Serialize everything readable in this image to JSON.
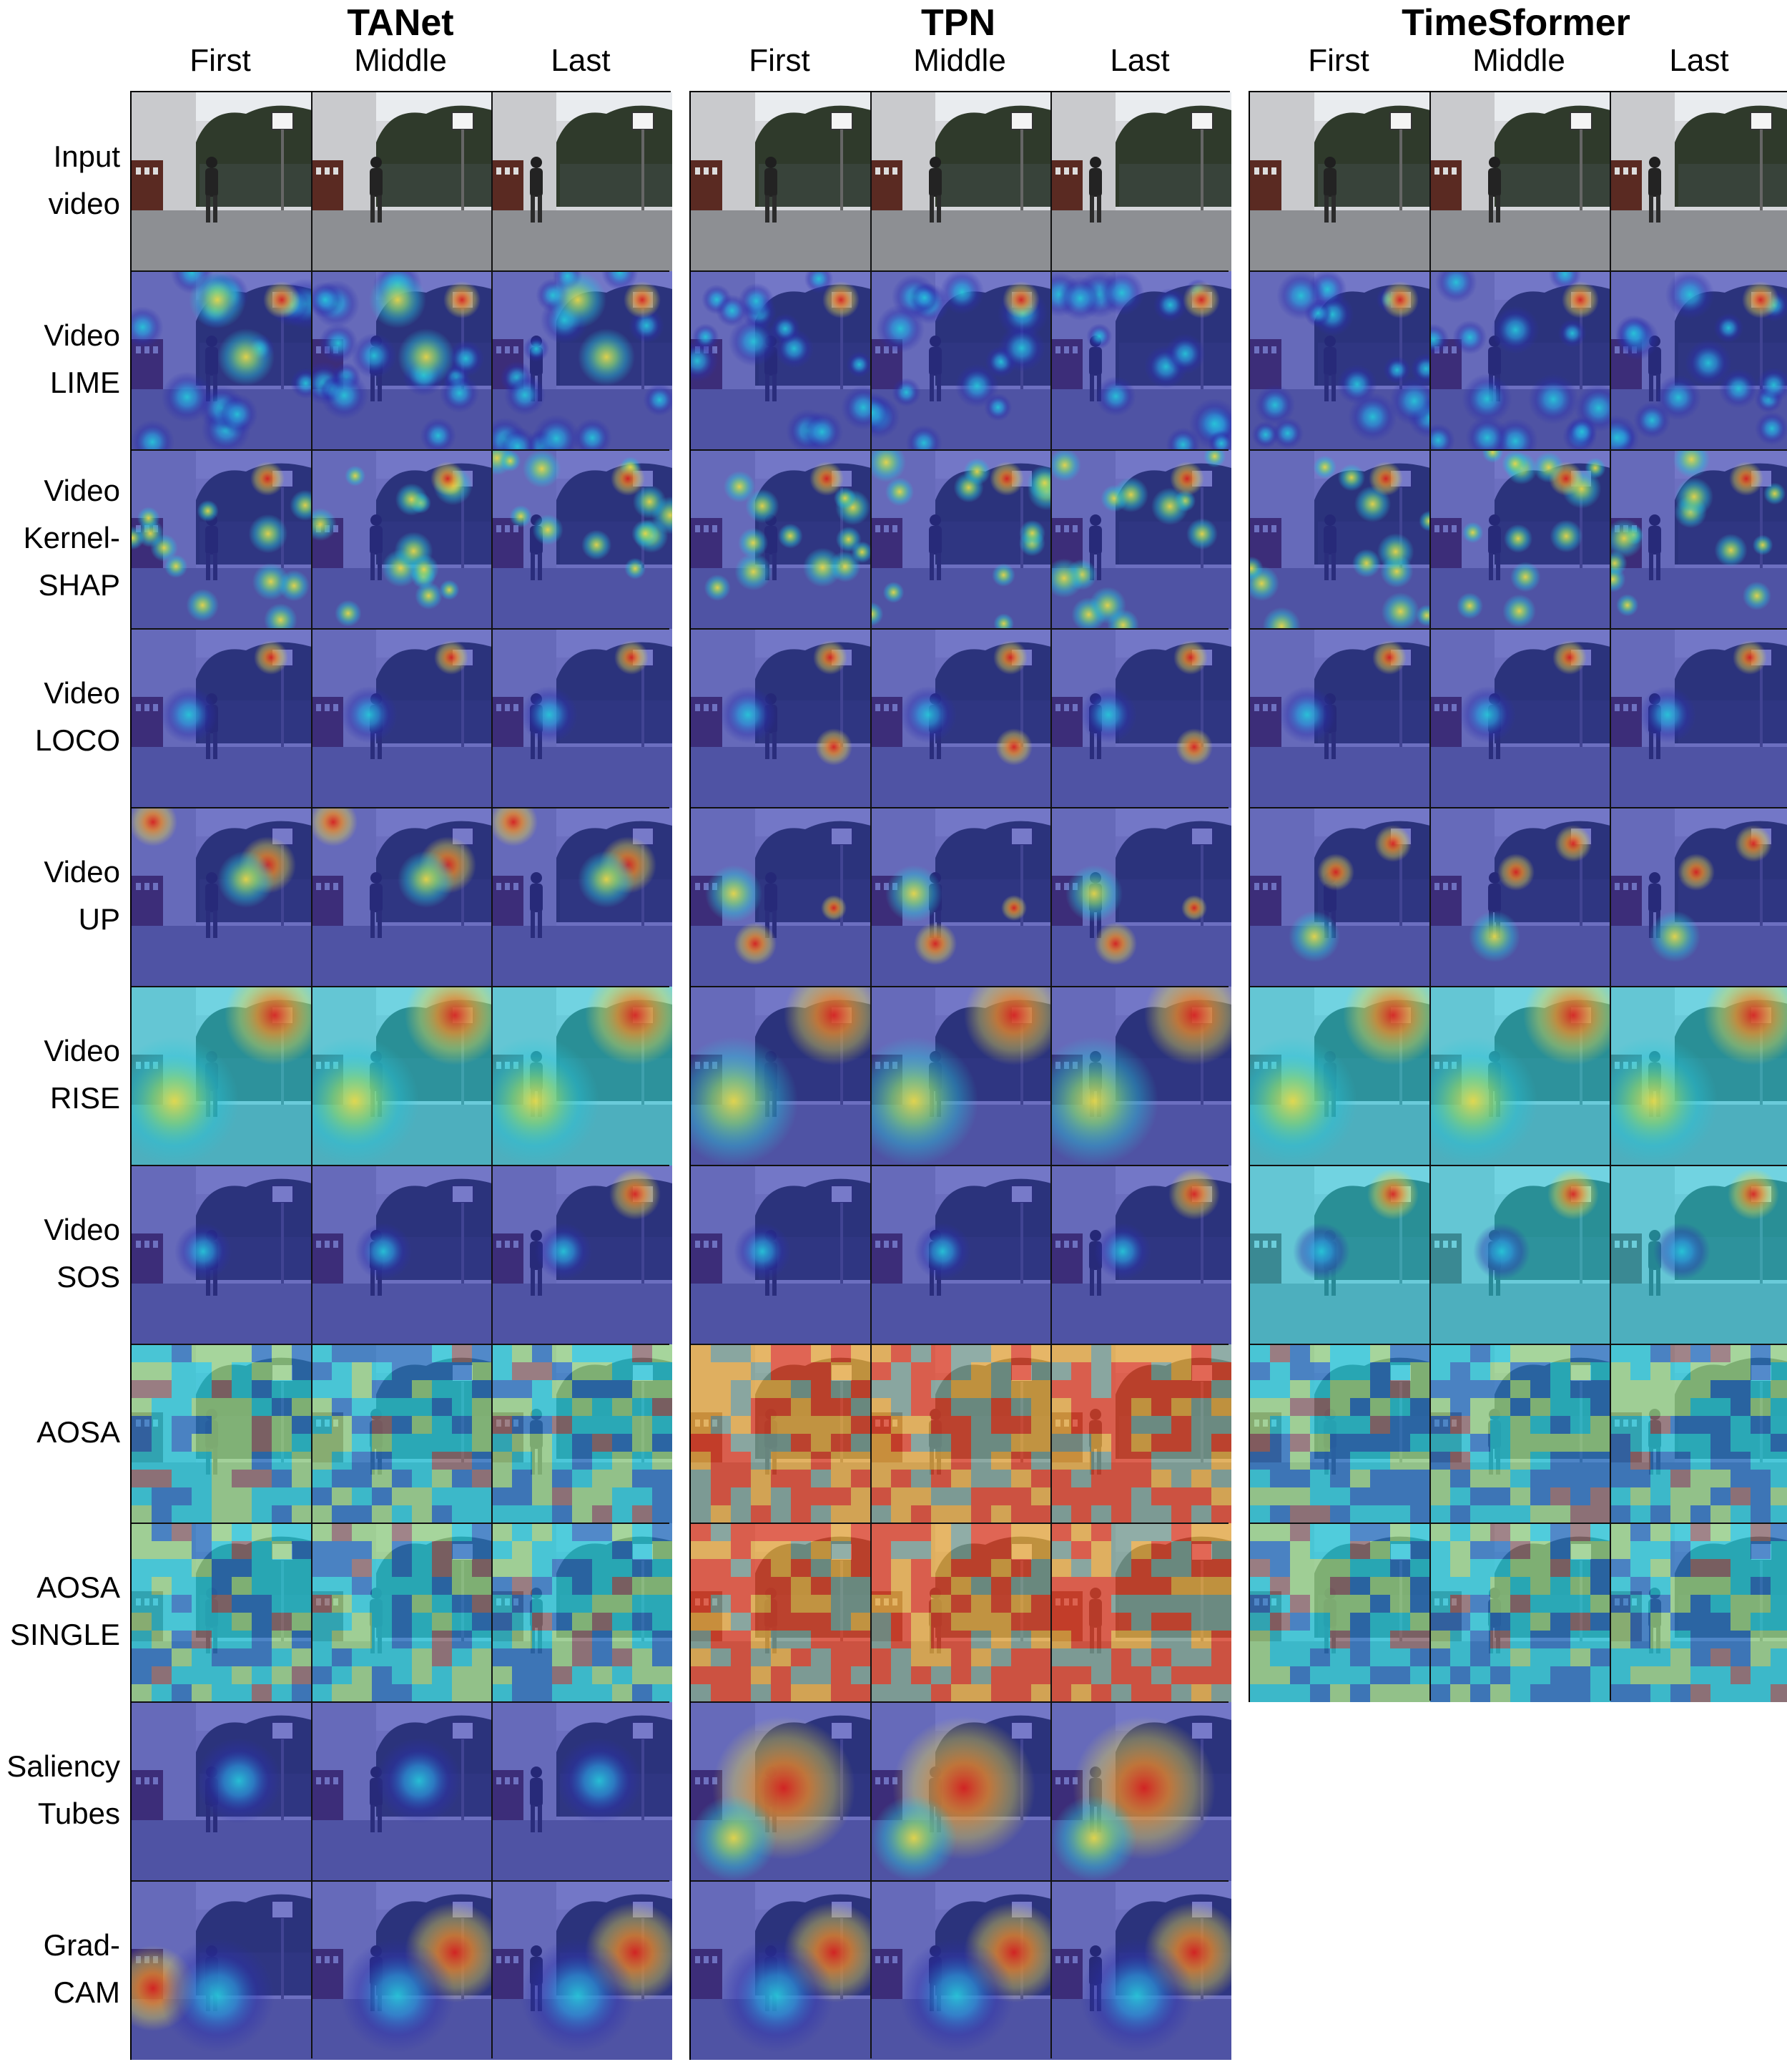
{
  "models": [
    {
      "id": "tanet",
      "title": "TANet",
      "rows": [
        "input_video",
        "video_lime",
        "video_kernel_shap",
        "video_loco",
        "video_up",
        "video_rise",
        "video_sos",
        "aosa",
        "aosa_single",
        "saliency_tubes",
        "grad_cam"
      ]
    },
    {
      "id": "tpn",
      "title": "TPN",
      "rows": [
        "input_video",
        "video_lime",
        "video_kernel_shap",
        "video_loco",
        "video_up",
        "video_rise",
        "video_sos",
        "aosa",
        "aosa_single",
        "saliency_tubes",
        "grad_cam"
      ]
    },
    {
      "id": "timesformer",
      "title": "TimeSformer",
      "rows": [
        "input_video",
        "video_lime",
        "video_kernel_shap",
        "video_loco",
        "video_up",
        "video_rise",
        "video_sos",
        "aosa",
        "aosa_single"
      ]
    }
  ],
  "frames": [
    "First",
    "Middle",
    "Last"
  ],
  "row_labels": [
    {
      "id": "input_video",
      "lines": [
        "Input",
        "video"
      ]
    },
    {
      "id": "video_lime",
      "lines": [
        "Video",
        "LIME"
      ]
    },
    {
      "id": "video_kernel_shap",
      "lines": [
        "Video",
        "Kernel-",
        "SHAP"
      ]
    },
    {
      "id": "video_loco",
      "lines": [
        "Video",
        "LOCO"
      ]
    },
    {
      "id": "video_up",
      "lines": [
        "Video",
        "UP"
      ]
    },
    {
      "id": "video_rise",
      "lines": [
        "Video",
        "RISE"
      ]
    },
    {
      "id": "video_sos",
      "lines": [
        "Video",
        "SOS"
      ]
    },
    {
      "id": "aosa",
      "lines": [
        "AOSA"
      ]
    },
    {
      "id": "aosa_single",
      "lines": [
        "AOSA",
        "SINGLE"
      ]
    },
    {
      "id": "saliency_tubes",
      "lines": [
        "Saliency",
        "Tubes"
      ]
    },
    {
      "id": "grad_cam",
      "lines": [
        "Grad-",
        "CAM"
      ]
    }
  ],
  "colors": {
    "heatmap_low": "#2a2fae",
    "heatmap_mid": "#27c4d8",
    "heatmap_warm": "#e6d84a",
    "heatmap_high": "#d9231f",
    "photo_wall": "#d7d8dc",
    "photo_ground": "#8d8f93",
    "photo_hedge": "#2f3a2b"
  }
}
